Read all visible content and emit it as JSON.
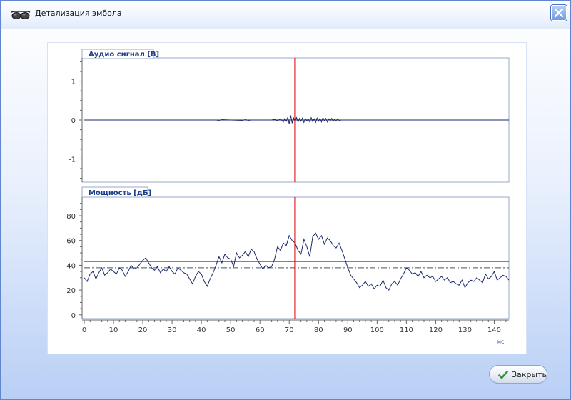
{
  "window": {
    "title": "Детализация эмбола",
    "close_icon": "close-icon",
    "title_icon": "glasses-icon"
  },
  "buttons": {
    "close_label": "Закрыть",
    "close_icon": "checkmark-icon"
  },
  "colors": {
    "signal_line": "#1b2a6b",
    "marker": "#dd0000",
    "threshold": "#dd2222",
    "baseline": "#445566",
    "panel_header": "#1d3e8a"
  },
  "chart_data": [
    {
      "type": "line",
      "title": "Аудио сигнал [В]",
      "xlim": [
        0,
        145
      ],
      "ylim": [
        -1.6,
        1.6
      ],
      "yticks": [
        -1,
        0,
        1
      ],
      "grid": false,
      "marker_x": 72,
      "x": [
        0,
        10,
        20,
        30,
        40,
        45,
        46,
        47,
        50,
        54,
        55,
        56,
        57,
        60,
        64,
        65,
        66,
        67,
        68,
        68.5,
        69,
        69.5,
        70,
        70.5,
        71,
        71.5,
        72,
        72.5,
        73,
        73.5,
        74,
        74.5,
        75,
        75.5,
        76,
        76.5,
        77,
        77.5,
        78,
        78.5,
        79,
        79.5,
        80,
        80.5,
        81,
        81.5,
        82,
        82.5,
        83,
        83.5,
        84,
        84.5,
        85,
        85.5,
        86,
        86.5,
        87,
        88,
        95,
        110,
        145
      ],
      "y": [
        0,
        0,
        0,
        0,
        0,
        0,
        -0.01,
        0.01,
        0,
        -0.01,
        0.01,
        -0.01,
        0,
        0,
        0,
        0.02,
        -0.02,
        0.03,
        -0.05,
        0.04,
        -0.03,
        0.07,
        -0.1,
        0.12,
        -0.08,
        0.05,
        -0.04,
        0.06,
        -0.05,
        0.04,
        -0.03,
        0.05,
        -0.06,
        0.04,
        -0.02,
        0.03,
        -0.05,
        0.06,
        -0.04,
        0.03,
        -0.06,
        0.05,
        -0.03,
        0.04,
        -0.05,
        0.06,
        -0.02,
        0.04,
        -0.05,
        0.03,
        -0.02,
        0.04,
        -0.03,
        0.02,
        -0.02,
        0.03,
        -0.01,
        0,
        0,
        0,
        0
      ]
    },
    {
      "type": "line",
      "title": "Мощность [дБ]",
      "xlabel": "мс",
      "xlim": [
        0,
        145
      ],
      "ylim": [
        -3,
        95
      ],
      "xticks": [
        0,
        10,
        20,
        30,
        40,
        50,
        60,
        70,
        80,
        90,
        100,
        110,
        120,
        130,
        140
      ],
      "yticks": [
        0,
        20,
        40,
        60,
        80
      ],
      "grid": false,
      "marker_x": 72,
      "threshold_y": 43,
      "baseline_y": 38,
      "x": [
        0,
        1,
        2,
        3,
        4,
        5,
        6,
        7,
        8,
        9,
        10,
        11,
        12,
        13,
        14,
        15,
        16,
        17,
        18,
        19,
        20,
        21,
        22,
        23,
        24,
        25,
        26,
        27,
        28,
        29,
        30,
        31,
        32,
        33,
        34,
        35,
        36,
        37,
        38,
        39,
        40,
        41,
        42,
        43,
        44,
        45,
        46,
        47,
        48,
        49,
        50,
        51,
        52,
        53,
        54,
        55,
        56,
        57,
        58,
        59,
        60,
        61,
        62,
        63,
        64,
        65,
        66,
        67,
        68,
        69,
        70,
        71,
        72,
        73,
        74,
        75,
        76,
        77,
        78,
        79,
        80,
        81,
        82,
        83,
        84,
        85,
        86,
        87,
        88,
        89,
        90,
        91,
        92,
        93,
        94,
        95,
        96,
        97,
        98,
        99,
        100,
        101,
        102,
        103,
        104,
        105,
        106,
        107,
        108,
        109,
        110,
        111,
        112,
        113,
        114,
        115,
        116,
        117,
        118,
        119,
        120,
        121,
        122,
        123,
        124,
        125,
        126,
        127,
        128,
        129,
        130,
        131,
        132,
        133,
        134,
        135,
        136,
        137,
        138,
        139,
        140,
        141,
        142,
        143,
        144,
        145
      ],
      "y": [
        30,
        27,
        33,
        35,
        29,
        34,
        38,
        32,
        34,
        37,
        35,
        33,
        38,
        36,
        31,
        35,
        40,
        37,
        38,
        41,
        44,
        46,
        42,
        38,
        36,
        39,
        34,
        37,
        35,
        39,
        35,
        33,
        38,
        36,
        34,
        33,
        29,
        25,
        31,
        35,
        33,
        27,
        23,
        29,
        34,
        40,
        47,
        42,
        49,
        46,
        45,
        39,
        50,
        46,
        48,
        51,
        47,
        53,
        51,
        45,
        41,
        37,
        40,
        38,
        39,
        45,
        55,
        52,
        58,
        56,
        64,
        60,
        58,
        52,
        49,
        61,
        55,
        47,
        63,
        66,
        61,
        64,
        57,
        62,
        60,
        56,
        54,
        58,
        52,
        45,
        38,
        32,
        29,
        26,
        22,
        24,
        27,
        23,
        25,
        21,
        24,
        23,
        28,
        22,
        20,
        25,
        27,
        24,
        29,
        33,
        38,
        36,
        33,
        34,
        31,
        35,
        30,
        32,
        30,
        31,
        27,
        29,
        31,
        28,
        30,
        26,
        27,
        25,
        24,
        28,
        22,
        26,
        28,
        27,
        30,
        28,
        26,
        33,
        29,
        31,
        35,
        28,
        30,
        32,
        31,
        28
      ]
    }
  ]
}
